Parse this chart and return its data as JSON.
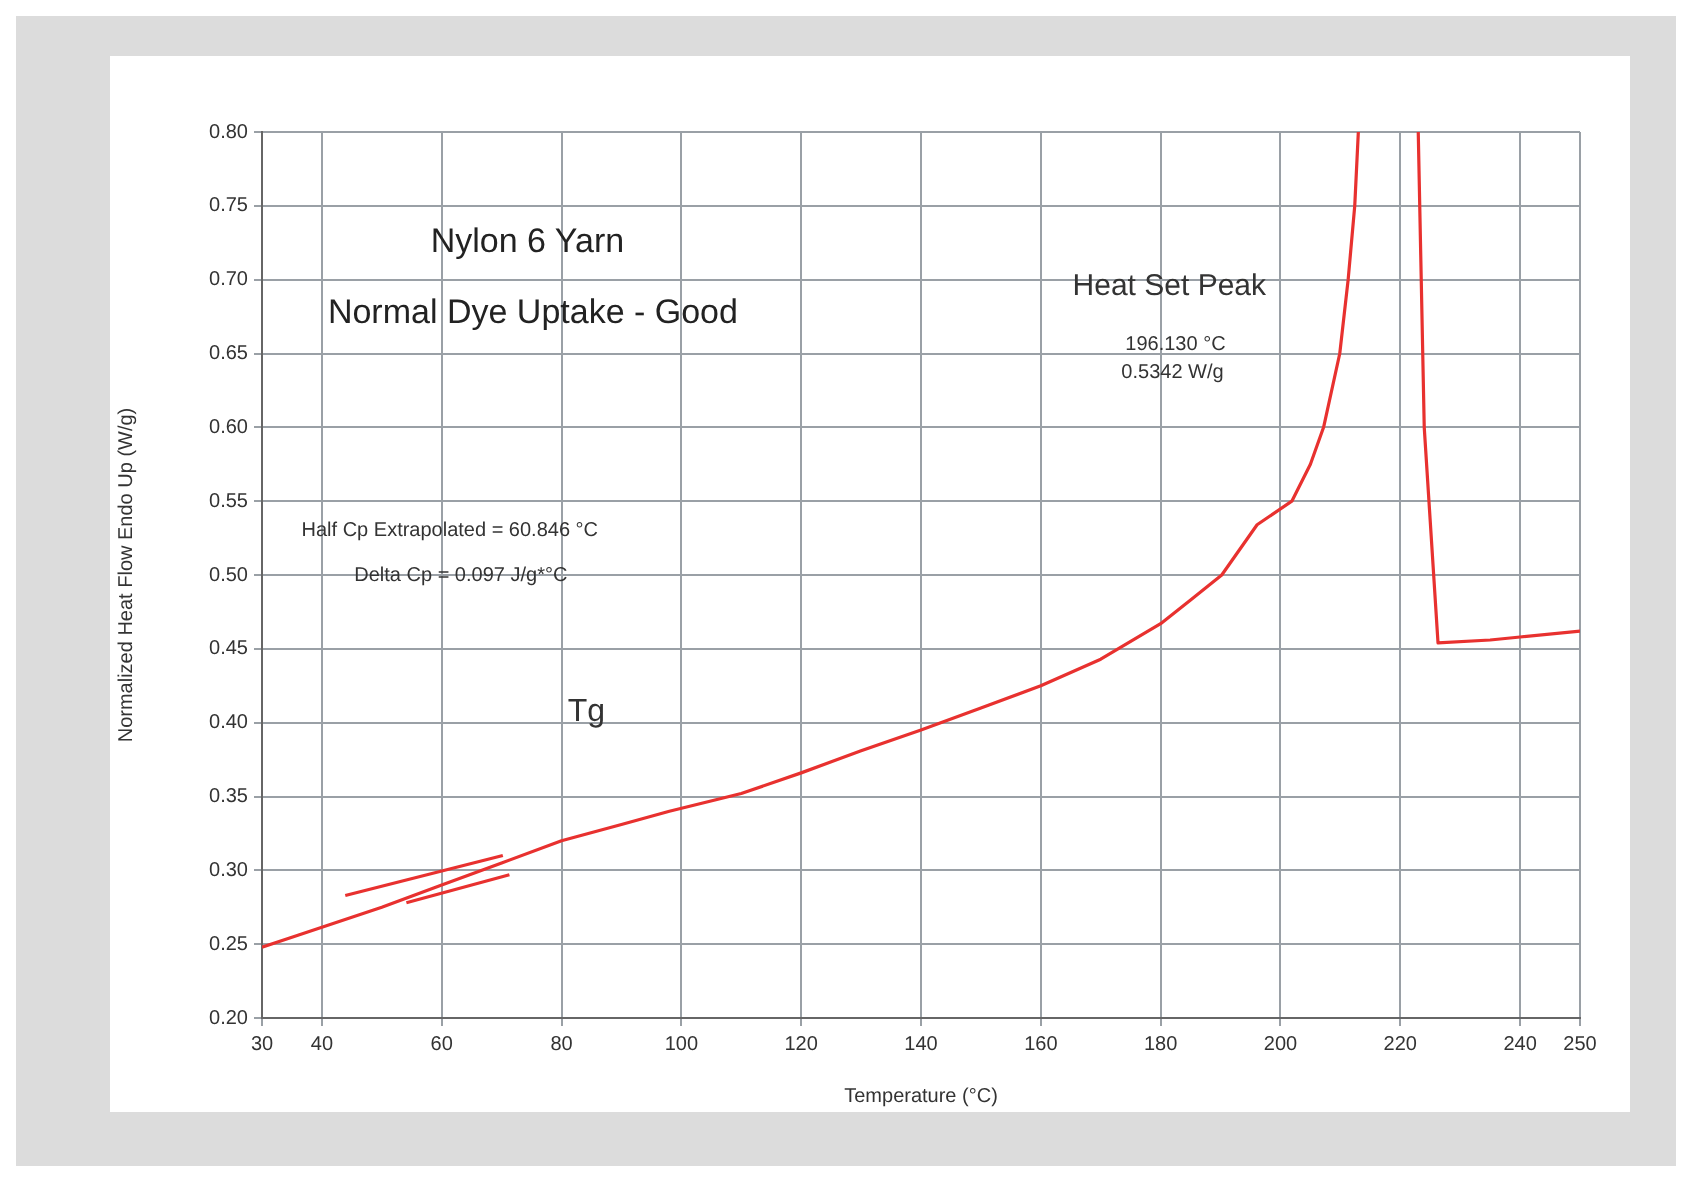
{
  "chart_data": {
    "type": "line",
    "title": "Nylon 6 Yarn",
    "subtitle": "Normal Dye Uptake - Good",
    "xlabel": "Temperature (°C)",
    "ylabel": "Normalized Heat Flow Endo Up (W/g)",
    "series": [
      {
        "color": "#e8312f",
        "x": [
          30,
          36,
          50,
          60,
          70,
          80,
          90,
          98,
          110,
          120,
          130,
          140,
          150,
          160,
          170,
          180,
          185,
          190.2,
          196.1,
          201.9,
          205,
          207.2,
          209.9,
          211.3,
          212.4,
          213,
          218,
          223,
          224,
          226.3,
          235,
          240,
          250
        ],
        "values": [
          0.248,
          0.256,
          0.275,
          0.29,
          0.305,
          0.32,
          0.331,
          0.34,
          0.352,
          0.366,
          0.381,
          0.395,
          0.41,
          0.425,
          0.443,
          0.467,
          0.483,
          0.5,
          0.534,
          0.55,
          0.575,
          0.6,
          0.65,
          0.7,
          0.75,
          0.8,
          null,
          0.8,
          0.6,
          0.454,
          0.456,
          0.458,
          0.462
        ]
      },
      {
        "color": "#e8312f",
        "x": [
          43.9,
          70.2
        ],
        "values": [
          0.283,
          0.31
        ]
      },
      {
        "color": "#e8312f",
        "x": [
          54.1,
          71.3
        ],
        "values": [
          0.278,
          0.297
        ]
      }
    ],
    "xlim": [
      30,
      250
    ],
    "xticks": [
      30,
      40,
      60,
      80,
      100,
      120,
      140,
      160,
      180,
      200,
      220,
      240,
      250
    ],
    "ylim": [
      0.2,
      0.8
    ],
    "yticks": [
      {
        "value": 0.2,
        "label": "0.20"
      },
      {
        "value": 0.25,
        "label": "0.25"
      },
      {
        "value": 0.3,
        "label": "0.30"
      },
      {
        "value": 0.35,
        "label": "0.35"
      },
      {
        "value": 0.4,
        "label": "0.40"
      },
      {
        "value": 0.45,
        "label": "0.45"
      },
      {
        "value": 0.5,
        "label": "0.50"
      },
      {
        "value": 0.55,
        "label": "0.55"
      },
      {
        "value": 0.6,
        "label": "0.60"
      },
      {
        "value": 0.65,
        "label": "0.65"
      },
      {
        "value": 0.7,
        "label": "0.70"
      },
      {
        "value": 0.75,
        "label": "0.75"
      },
      {
        "value": 0.8,
        "label": "0.80"
      }
    ],
    "grid": true,
    "marker": "none",
    "line_style": "solid",
    "annotations": [
      "Half Cp Extrapolated = 60.846 °C",
      "Delta Cp = 0.097 J/g*°C",
      "Tg",
      "Heat Set Peak",
      "196.130 °C",
      "0.5342 W/g"
    ]
  }
}
